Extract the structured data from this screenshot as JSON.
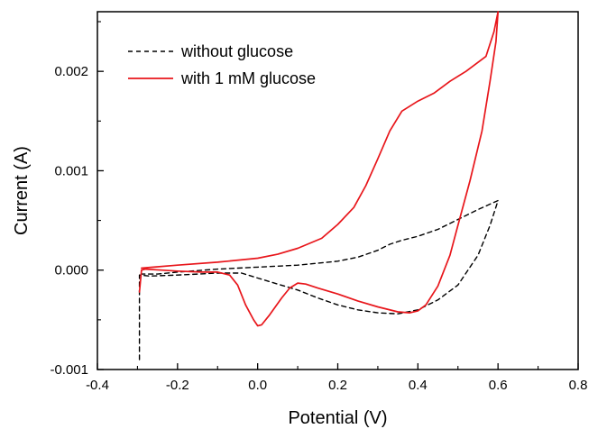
{
  "chart_data": {
    "type": "line",
    "title": "",
    "xlabel": "Potential (V)",
    "ylabel": "Current (A)",
    "xlim": [
      -0.4,
      0.8
    ],
    "ylim": [
      -0.001,
      0.0026
    ],
    "x_ticks": [
      -0.4,
      -0.2,
      0.0,
      0.2,
      0.4,
      0.6,
      0.8
    ],
    "x_tick_labels": [
      "-0.4",
      "-0.2",
      "0.0",
      "0.2",
      "0.4",
      "0.6",
      "0.8"
    ],
    "y_ticks": [
      -0.001,
      0.0,
      0.001,
      0.002
    ],
    "y_tick_labels": [
      "-0.001",
      "0.000",
      "0.001",
      "0.002"
    ],
    "grid": false,
    "legend_position": "top-left",
    "series": [
      {
        "name": "without glucose",
        "color": "#000000",
        "style": "dashed",
        "points": [
          [
            -0.295,
            -0.0009
          ],
          [
            -0.295,
            -5e-05
          ],
          [
            -0.27,
            -6e-05
          ],
          [
            -0.2,
            -5e-05
          ],
          [
            -0.1,
            -3e-05
          ],
          [
            -0.04,
            -3e-05
          ],
          [
            0.0,
            -8e-05
          ],
          [
            0.05,
            -0.00014
          ],
          [
            0.1,
            -0.0002
          ],
          [
            0.15,
            -0.00028
          ],
          [
            0.2,
            -0.00035
          ],
          [
            0.25,
            -0.0004
          ],
          [
            0.3,
            -0.00043
          ],
          [
            0.35,
            -0.00044
          ],
          [
            0.4,
            -0.0004
          ],
          [
            0.45,
            -0.0003
          ],
          [
            0.5,
            -0.00015
          ],
          [
            0.55,
            0.00015
          ],
          [
            0.58,
            0.00045
          ],
          [
            0.6,
            0.0007
          ],
          [
            0.55,
            0.00061
          ],
          [
            0.5,
            0.00051
          ],
          [
            0.45,
            0.00041
          ],
          [
            0.4,
            0.00034
          ],
          [
            0.36,
            0.0003
          ],
          [
            0.33,
            0.00026
          ],
          [
            0.3,
            0.0002
          ],
          [
            0.25,
            0.00013
          ],
          [
            0.2,
            9e-05
          ],
          [
            0.1,
            5e-05
          ],
          [
            0.0,
            3e-05
          ],
          [
            -0.1,
            1e-05
          ],
          [
            -0.2,
            -2e-05
          ],
          [
            -0.25,
            -4e-05
          ],
          [
            -0.29,
            -4e-05
          ]
        ]
      },
      {
        "name": "with 1 mM glucose",
        "color": "#e8161b",
        "style": "solid",
        "points": [
          [
            -0.295,
            -0.00022
          ],
          [
            -0.29,
            0.0
          ],
          [
            -0.28,
            1e-05
          ],
          [
            -0.24,
            0.0
          ],
          [
            -0.2,
            -1e-05
          ],
          [
            -0.14,
            -2e-05
          ],
          [
            -0.1,
            -2e-05
          ],
          [
            -0.07,
            -5e-05
          ],
          [
            -0.05,
            -0.00015
          ],
          [
            -0.03,
            -0.00035
          ],
          [
            -0.01,
            -0.0005
          ],
          [
            0.0,
            -0.00056
          ],
          [
            0.01,
            -0.00055
          ],
          [
            0.03,
            -0.00045
          ],
          [
            0.06,
            -0.00028
          ],
          [
            0.08,
            -0.00018
          ],
          [
            0.1,
            -0.00013
          ],
          [
            0.12,
            -0.00014
          ],
          [
            0.15,
            -0.00018
          ],
          [
            0.2,
            -0.00024
          ],
          [
            0.25,
            -0.00031
          ],
          [
            0.3,
            -0.00037
          ],
          [
            0.35,
            -0.00042
          ],
          [
            0.38,
            -0.00043
          ],
          [
            0.4,
            -0.00041
          ],
          [
            0.42,
            -0.00035
          ],
          [
            0.45,
            -0.00016
          ],
          [
            0.48,
            0.00015
          ],
          [
            0.5,
            0.00045
          ],
          [
            0.53,
            0.0009
          ],
          [
            0.56,
            0.0014
          ],
          [
            0.58,
            0.0019
          ],
          [
            0.595,
            0.0023
          ],
          [
            0.6,
            0.0026
          ],
          [
            0.59,
            0.0024
          ],
          [
            0.57,
            0.00215
          ],
          [
            0.52,
            0.002
          ],
          [
            0.48,
            0.0019
          ],
          [
            0.44,
            0.00178
          ],
          [
            0.4,
            0.0017
          ],
          [
            0.36,
            0.0016
          ],
          [
            0.33,
            0.0014
          ],
          [
            0.3,
            0.00112
          ],
          [
            0.27,
            0.00085
          ],
          [
            0.24,
            0.00063
          ],
          [
            0.2,
            0.00046
          ],
          [
            0.16,
            0.00032
          ],
          [
            0.1,
            0.00022
          ],
          [
            0.05,
            0.00016
          ],
          [
            0.0,
            0.00012
          ],
          [
            -0.1,
            8e-05
          ],
          [
            -0.2,
            5e-05
          ],
          [
            -0.26,
            3e-05
          ],
          [
            -0.29,
            2e-05
          ]
        ]
      }
    ]
  }
}
